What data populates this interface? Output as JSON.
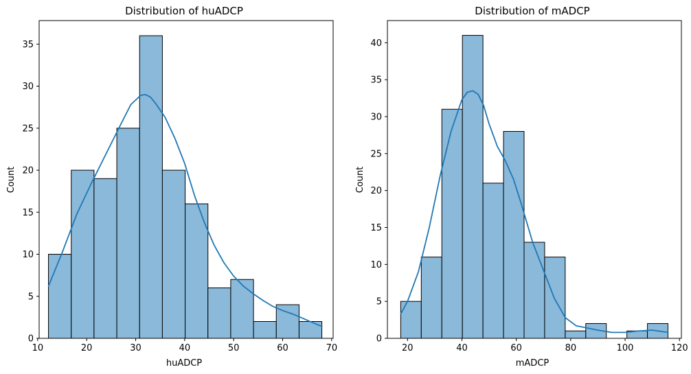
{
  "chart_data": [
    {
      "type": "bar",
      "title": "Distribution of huADCP",
      "xlabel": "huADCP",
      "ylabel": "Count",
      "bin_edges": [
        12.2,
        16.85,
        21.5,
        26.15,
        30.8,
        35.45,
        40.1,
        44.75,
        49.4,
        54.05,
        58.7,
        63.35,
        68.0
      ],
      "values": [
        10,
        20,
        19,
        25,
        36,
        20,
        16,
        6,
        7,
        2,
        4,
        2
      ],
      "xlim": [
        10.3,
        70.3
      ],
      "ylim": [
        0,
        37.8
      ],
      "xticks": [
        10,
        20,
        30,
        40,
        50,
        60,
        70
      ],
      "yticks": [
        0,
        5,
        10,
        15,
        20,
        25,
        30,
        35
      ],
      "bar_color": "#8ab9da",
      "line_color": "#1f77b4",
      "kde": {
        "x": [
          12.2,
          15,
          18,
          21,
          24,
          27,
          29,
          31,
          32,
          33,
          34,
          36,
          38,
          40,
          42,
          44,
          46,
          48,
          50,
          52,
          54,
          56,
          58,
          60,
          62,
          64,
          66,
          68
        ],
        "y": [
          6.2,
          10.2,
          14.8,
          18.5,
          22.0,
          25.5,
          27.8,
          28.9,
          29.0,
          28.7,
          28.0,
          26.3,
          23.8,
          20.8,
          17.0,
          13.8,
          11.1,
          9.0,
          7.4,
          6.2,
          5.3,
          4.5,
          3.8,
          3.3,
          2.9,
          2.4,
          1.9,
          1.4
        ]
      }
    },
    {
      "type": "bar",
      "title": "Distribution of mADCP",
      "xlabel": "mADCP",
      "ylabel": "Count",
      "bin_edges": [
        17.5,
        25.06,
        32.62,
        40.18,
        47.74,
        55.3,
        62.86,
        70.42,
        77.98,
        85.54,
        93.1,
        100.66,
        108.22,
        115.78
      ],
      "values": [
        5,
        11,
        31,
        41,
        21,
        28,
        13,
        11,
        1,
        2,
        0,
        1,
        2
      ],
      "xlim": [
        12.6,
        120.7
      ],
      "ylim": [
        0,
        43.0
      ],
      "xticks": [
        20,
        40,
        60,
        80,
        100,
        120
      ],
      "yticks": [
        0,
        5,
        10,
        15,
        20,
        25,
        30,
        35,
        40
      ],
      "bar_color": "#8ab9da",
      "line_color": "#1f77b4",
      "kde": {
        "x": [
          17.5,
          20,
          24,
          28,
          32,
          36,
          40,
          42,
          44,
          46,
          48,
          50,
          53,
          56,
          59,
          62,
          66,
          70,
          74,
          78,
          82,
          86,
          90,
          95,
          100,
          105,
          110,
          115.8
        ],
        "y": [
          3.3,
          5.0,
          9.0,
          15.0,
          22.0,
          28.0,
          32.3,
          33.3,
          33.5,
          33.0,
          31.5,
          29.0,
          26.0,
          24.0,
          21.5,
          18.0,
          13.0,
          9.2,
          5.4,
          2.8,
          1.7,
          1.4,
          1.1,
          0.8,
          0.8,
          1.0,
          1.1,
          0.8
        ]
      }
    }
  ]
}
